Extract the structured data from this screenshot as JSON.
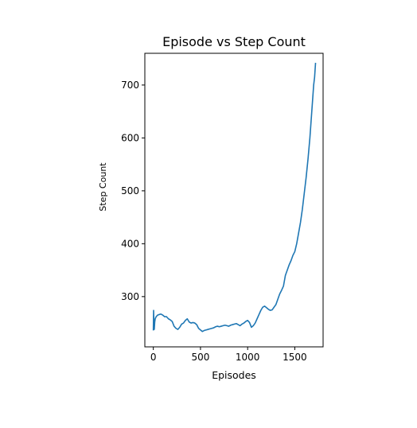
{
  "chart_data": {
    "type": "line",
    "title": "Episode vs Step Count",
    "xlabel": "Episodes",
    "ylabel": "Step Count",
    "xlim": [
      -90,
      1800
    ],
    "ylim": [
      205,
      760
    ],
    "xticks": [
      0,
      500,
      1000,
      1500
    ],
    "xtick_labels": [
      "0",
      "500",
      "1000",
      "1500"
    ],
    "yticks": [
      300,
      400,
      500,
      600,
      700
    ],
    "ytick_labels": [
      "300",
      "400",
      "500",
      "600",
      "700"
    ],
    "grid": false,
    "legend": "none",
    "line_color": "#1f77b4",
    "series": [
      {
        "x": [
          0,
          3,
          6,
          10,
          15,
          20,
          30,
          45,
          60,
          80,
          100,
          120,
          140,
          160,
          180,
          200,
          220,
          240,
          260,
          280,
          300,
          320,
          340,
          360,
          380,
          400,
          420,
          440,
          460,
          480,
          500,
          520,
          540,
          560,
          580,
          600,
          620,
          640,
          660,
          680,
          700,
          720,
          740,
          760,
          780,
          800,
          820,
          840,
          860,
          880,
          900,
          920,
          940,
          960,
          980,
          1000,
          1020,
          1040,
          1060,
          1080,
          1100,
          1120,
          1140,
          1160,
          1180,
          1200,
          1220,
          1240,
          1260,
          1280,
          1300,
          1320,
          1340,
          1360,
          1380,
          1400,
          1420,
          1440,
          1460,
          1480,
          1500,
          1520,
          1540,
          1560,
          1580,
          1600,
          1620,
          1640,
          1660,
          1680,
          1700,
          1710,
          1720
        ],
        "y": [
          236,
          274,
          250,
          238,
          252,
          258,
          262,
          265,
          266,
          267,
          265,
          262,
          262,
          258,
          256,
          253,
          244,
          240,
          238,
          242,
          248,
          250,
          255,
          258,
          252,
          250,
          251,
          250,
          247,
          240,
          237,
          234,
          236,
          237,
          238,
          239,
          240,
          241,
          243,
          244,
          243,
          244,
          245,
          246,
          245,
          244,
          246,
          247,
          248,
          249,
          247,
          245,
          248,
          250,
          253,
          255,
          251,
          242,
          245,
          250,
          258,
          266,
          274,
          280,
          282,
          279,
          276,
          274,
          275,
          280,
          285,
          295,
          305,
          312,
          320,
          340,
          350,
          360,
          368,
          378,
          385,
          400,
          420,
          440,
          465,
          495,
          525,
          560,
          600,
          650,
          700,
          715,
          742
        ]
      }
    ]
  }
}
